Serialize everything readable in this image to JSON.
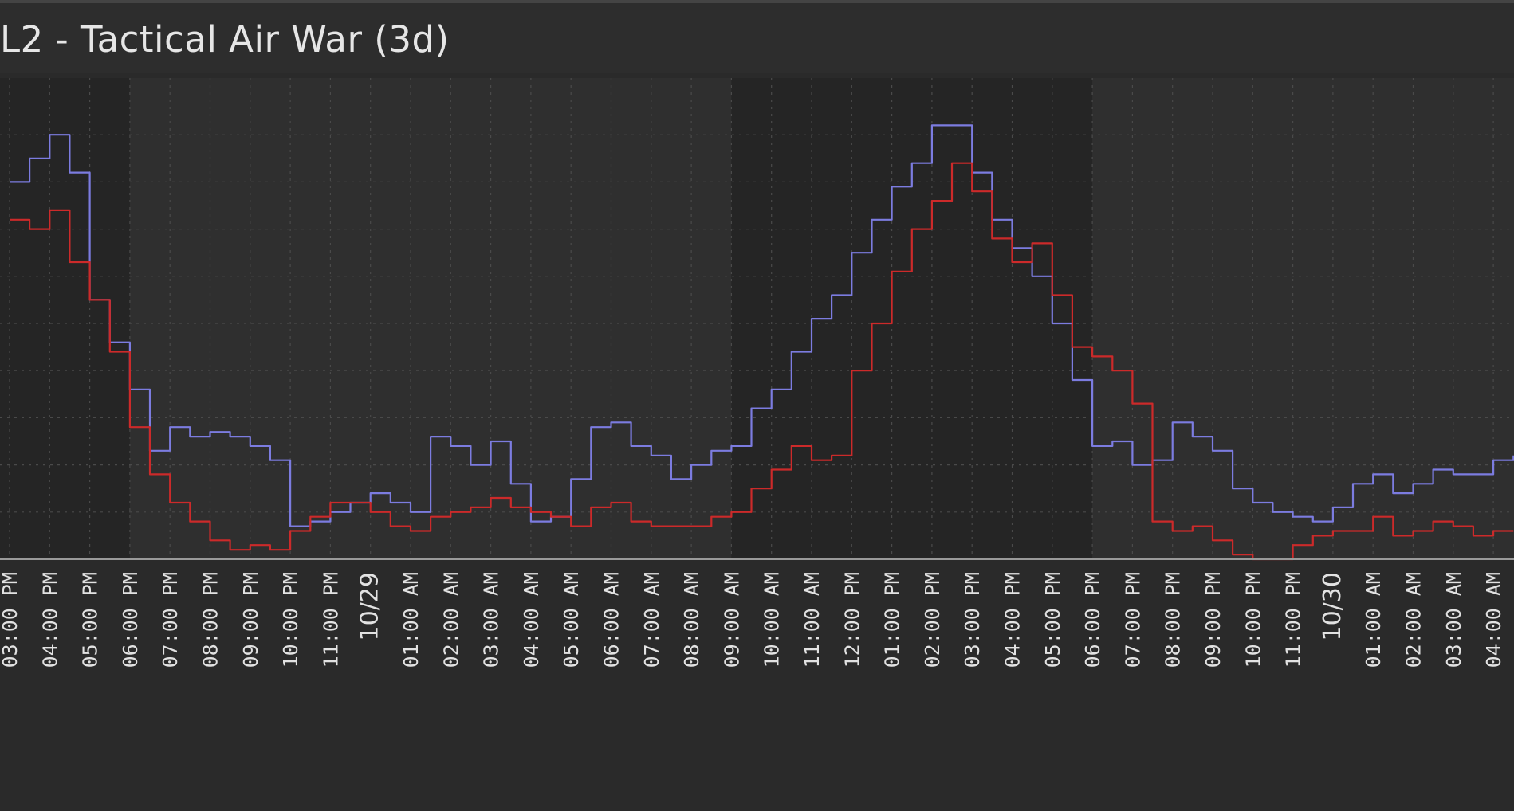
{
  "panel": {
    "title": "L2 - Tactical Air War (3d)"
  },
  "colors": {
    "background": "#2a2a2a",
    "plot_light_band": "#2f2f2f",
    "plot_dark_band": "#252525",
    "grid": "#4a4a4a",
    "date_label": "#e05555",
    "tick_label": "#e2e2e2"
  },
  "chart_data": {
    "type": "line",
    "title": "L2 - Tactical Air War (3d)",
    "xlabel": "",
    "ylabel": "",
    "grid": true,
    "y_tick_labels_visible": false,
    "ylim": [
      0,
      10
    ],
    "x_tick_labels": [
      "03:00 PM",
      "04:00 PM",
      "05:00 PM",
      "06:00 PM",
      "07:00 PM",
      "08:00 PM",
      "09:00 PM",
      "10:00 PM",
      "11:00 PM",
      "10/29",
      "01:00 AM",
      "02:00 AM",
      "03:00 AM",
      "04:00 AM",
      "05:00 AM",
      "06:00 AM",
      "07:00 AM",
      "08:00 AM",
      "09:00 AM",
      "10:00 AM",
      "11:00 AM",
      "12:00 PM",
      "01:00 PM",
      "02:00 PM",
      "03:00 PM",
      "04:00 PM",
      "05:00 PM",
      "06:00 PM",
      "07:00 PM",
      "08:00 PM",
      "09:00 PM",
      "10:00 PM",
      "11:00 PM",
      "10/30",
      "01:00 AM",
      "02:00 AM",
      "03:00 AM",
      "04:00 AM"
    ],
    "date_markers": [
      "10/29",
      "10/30"
    ],
    "x": [
      0,
      0.5,
      1,
      1.5,
      2,
      2.5,
      3,
      3.5,
      4,
      4.5,
      5,
      5.5,
      6,
      6.5,
      7,
      7.5,
      8,
      8.5,
      9,
      9.5,
      10,
      10.5,
      11,
      11.5,
      12,
      12.5,
      13,
      13.5,
      14,
      14.5,
      15,
      15.5,
      16,
      16.5,
      17,
      17.5,
      18,
      18.5,
      19,
      19.5,
      20,
      20.5,
      21,
      21.5,
      22,
      22.5,
      23,
      23.5,
      24,
      24.5,
      25,
      25.5,
      26,
      26.5,
      27,
      27.5,
      28,
      28.5,
      29,
      29.5,
      30,
      30.5,
      31,
      31.5,
      32,
      32.5,
      33,
      33.5,
      34,
      34.5,
      35,
      35.5,
      36,
      36.5,
      37,
      37.5
    ],
    "series": [
      {
        "color": "#7c7ce0",
        "values": [
          8.0,
          8.5,
          9.0,
          8.2,
          5.5,
          4.6,
          3.6,
          2.3,
          2.8,
          2.6,
          2.7,
          2.6,
          2.4,
          2.1,
          0.7,
          0.8,
          1.0,
          1.2,
          1.4,
          1.2,
          1.0,
          2.6,
          2.4,
          2.0,
          2.5,
          1.6,
          0.8,
          0.9,
          1.7,
          2.8,
          2.9,
          2.4,
          2.2,
          1.7,
          2.0,
          2.3,
          2.4,
          3.2,
          3.6,
          4.4,
          5.1,
          5.6,
          6.5,
          7.2,
          7.9,
          8.4,
          9.2,
          9.2,
          8.2,
          7.2,
          6.6,
          6.0,
          5.0,
          3.8,
          2.4,
          2.5,
          2.0,
          2.1,
          2.9,
          2.6,
          2.3,
          1.5,
          1.2,
          1.0,
          0.9,
          0.8,
          1.1,
          1.6,
          1.8,
          1.4,
          1.6,
          1.9,
          1.8,
          1.8,
          2.1,
          2.2
        ]
      },
      {
        "color": "#cc2a2a",
        "values": [
          7.2,
          7.0,
          7.4,
          6.3,
          5.5,
          4.4,
          2.8,
          1.8,
          1.2,
          0.8,
          0.4,
          0.2,
          0.3,
          0.2,
          0.6,
          0.9,
          1.2,
          1.2,
          1.0,
          0.7,
          0.6,
          0.9,
          1.0,
          1.1,
          1.3,
          1.1,
          1.0,
          0.9,
          0.7,
          1.1,
          1.2,
          0.8,
          0.7,
          0.7,
          0.7,
          0.9,
          1.0,
          1.5,
          1.9,
          2.4,
          2.1,
          2.2,
          4.0,
          5.0,
          6.1,
          7.0,
          7.6,
          8.4,
          7.8,
          6.8,
          6.3,
          6.7,
          5.6,
          4.5,
          4.3,
          4.0,
          3.3,
          0.8,
          0.6,
          0.7,
          0.4,
          0.1,
          0.0,
          0.0,
          0.3,
          0.5,
          0.6,
          0.6,
          0.9,
          0.5,
          0.6,
          0.8,
          0.7,
          0.5,
          0.6,
          0.6
        ]
      }
    ]
  }
}
